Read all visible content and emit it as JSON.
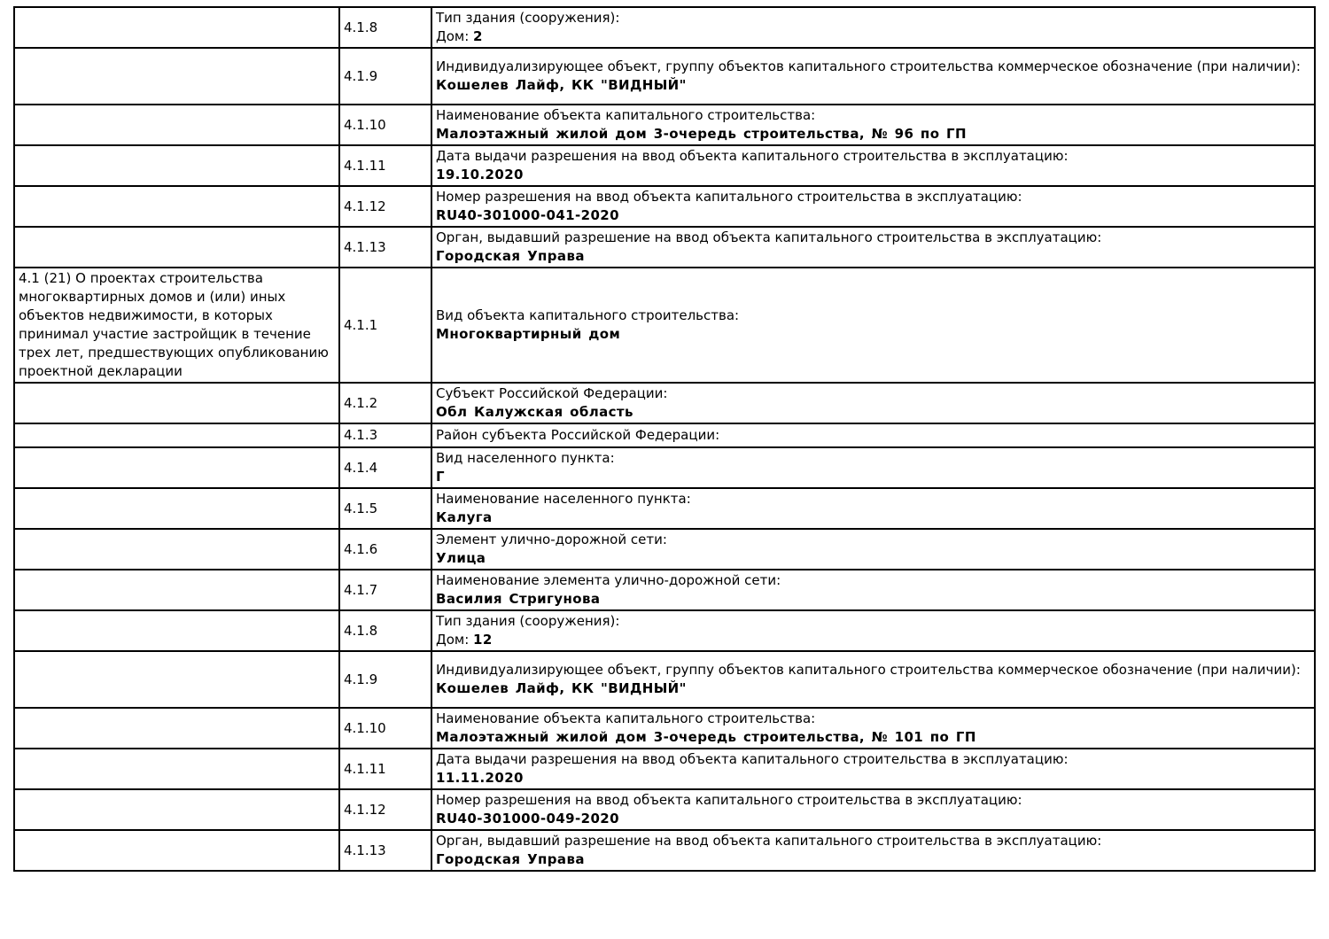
{
  "page": {
    "background_color": "#ffffff",
    "text_color": "#000000",
    "border_color": "#000000"
  },
  "table": {
    "rows": [
      {
        "section": "",
        "num": "4.1.8",
        "label": "Тип здания (сооружения):",
        "value_prefix": "Дом: ",
        "value": "2"
      },
      {
        "section": "",
        "num": "4.1.9",
        "label": "Индивидуализирующее объект, группу объектов капитального строительства коммерческое обозначение (при наличии):",
        "value": "Кошелев Лайф, КК \"ВИДНЫЙ\""
      },
      {
        "section": "",
        "num": "4.1.10",
        "label": "Наименование объекта капитального строительства:",
        "value": "Малоэтажный жилой дом 3-очередь строительства, № 96 по ГП"
      },
      {
        "section": "",
        "num": "4.1.11",
        "label": "Дата выдачи разрешения на ввод объекта капитального строительства в эксплуатацию:",
        "value": "19.10.2020"
      },
      {
        "section": "",
        "num": "4.1.12",
        "label": "Номер разрешения на ввод объекта капитального строительства в эксплуатацию:",
        "value": "RU40-301000-041-2020"
      },
      {
        "section": "",
        "num": "4.1.13",
        "label": "Орган, выдавший разрешение на ввод объекта капитального строительства в эксплуатацию:",
        "value": "Городская Управа"
      },
      {
        "section": "4.1 (21) О проектах строительства многоквартирных домов и (или) иных объектов недвижимости, в которых принимал участие застройщик в течение трех лет, предшествующих опубликованию проектной декларации",
        "num": "4.1.1",
        "label": "Вид объекта капитального строительства:",
        "value": "Многоквартирный дом"
      },
      {
        "section": "",
        "num": "4.1.2",
        "label": "Субъект Российской Федерации:",
        "value": "Обл Калужская область"
      },
      {
        "section": "",
        "num": "4.1.3",
        "label": "Район субъекта Российской Федерации:",
        "value": ""
      },
      {
        "section": "",
        "num": "4.1.4",
        "label": "Вид населенного пункта:",
        "value": "Г"
      },
      {
        "section": "",
        "num": "4.1.5",
        "label": "Наименование населенного пункта:",
        "value": "Калуга"
      },
      {
        "section": "",
        "num": "4.1.6",
        "label": "Элемент улично-дорожной сети:",
        "value": "Улица"
      },
      {
        "section": "",
        "num": "4.1.7",
        "label": "Наименование элемента улично-дорожной сети:",
        "value": "Василия Стригунова"
      },
      {
        "section": "",
        "num": "4.1.8",
        "label": "Тип здания (сооружения):",
        "value_prefix": "Дом: ",
        "value": "12"
      },
      {
        "section": "",
        "num": "4.1.9",
        "label": "Индивидуализирующее объект, группу объектов капитального строительства коммерческое обозначение (при наличии):",
        "value": "Кошелев Лайф, КК \"ВИДНЫЙ\""
      },
      {
        "section": "",
        "num": "4.1.10",
        "label": "Наименование объекта капитального строительства:",
        "value": "Малоэтажный жилой дом 3-очередь строительства, № 101 по ГП"
      },
      {
        "section": "",
        "num": "4.1.11",
        "label": "Дата выдачи разрешения на ввод объекта капитального строительства в эксплуатацию:",
        "value": "11.11.2020"
      },
      {
        "section": "",
        "num": "4.1.12",
        "label": "Номер разрешения на ввод объекта капитального строительства в эксплуатацию:",
        "value": "RU40-301000-049-2020"
      },
      {
        "section": "",
        "num": "4.1.13",
        "label": "Орган, выдавший разрешение на ввод объекта капитального строительства в эксплуатацию:",
        "value": "Городская Управа"
      }
    ]
  }
}
